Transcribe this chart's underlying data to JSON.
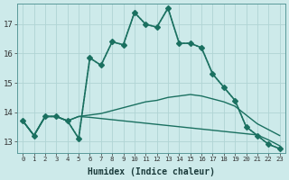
{
  "xlabel": "Humidex (Indice chaleur)",
  "background_color": "#cdeaea",
  "grid_color": "#b0d4d4",
  "line_color": "#1a7060",
  "xlim": [
    -0.5,
    23.5
  ],
  "ylim": [
    12.6,
    17.7
  ],
  "yticks": [
    13,
    14,
    15,
    16,
    17
  ],
  "xticks": [
    0,
    1,
    2,
    3,
    4,
    5,
    6,
    7,
    8,
    9,
    10,
    11,
    12,
    13,
    14,
    15,
    16,
    17,
    18,
    19,
    20,
    21,
    22,
    23
  ],
  "series": [
    {
      "y": [
        13.7,
        13.2,
        13.85,
        13.85,
        13.7,
        13.1,
        15.85,
        15.6,
        16.4,
        16.3,
        17.4,
        17.0,
        16.9,
        17.55,
        16.35,
        16.35,
        16.2,
        15.3,
        14.85,
        14.4,
        13.5,
        13.2,
        12.9,
        12.75
      ],
      "marker": "D",
      "linestyle": "-",
      "linewidth": 1.2,
      "markersize": 3
    },
    {
      "y": [
        13.7,
        13.2,
        13.85,
        13.85,
        13.7,
        13.1,
        15.85,
        15.6,
        16.4,
        16.3,
        17.4,
        17.0,
        16.9,
        17.55,
        16.35,
        16.35,
        16.2,
        15.3,
        14.85,
        14.4,
        13.5,
        13.2,
        12.9,
        12.75
      ],
      "marker": "",
      "linestyle": ":",
      "linewidth": 1.0,
      "markersize": 0
    },
    {
      "y": [
        13.7,
        13.2,
        13.85,
        13.85,
        13.7,
        13.85,
        13.9,
        13.95,
        14.05,
        14.15,
        14.25,
        14.35,
        14.4,
        14.5,
        14.55,
        14.6,
        14.55,
        14.45,
        14.35,
        14.2,
        13.9,
        13.6,
        13.4,
        13.2
      ],
      "marker": "",
      "linestyle": "-",
      "linewidth": 1.0,
      "markersize": 0
    },
    {
      "y": [
        13.7,
        13.2,
        13.85,
        13.85,
        13.7,
        13.85,
        13.82,
        13.78,
        13.74,
        13.7,
        13.66,
        13.62,
        13.58,
        13.54,
        13.5,
        13.46,
        13.42,
        13.38,
        13.34,
        13.3,
        13.26,
        13.22,
        13.05,
        12.85
      ],
      "marker": "",
      "linestyle": "-",
      "linewidth": 1.0,
      "markersize": 0
    }
  ]
}
